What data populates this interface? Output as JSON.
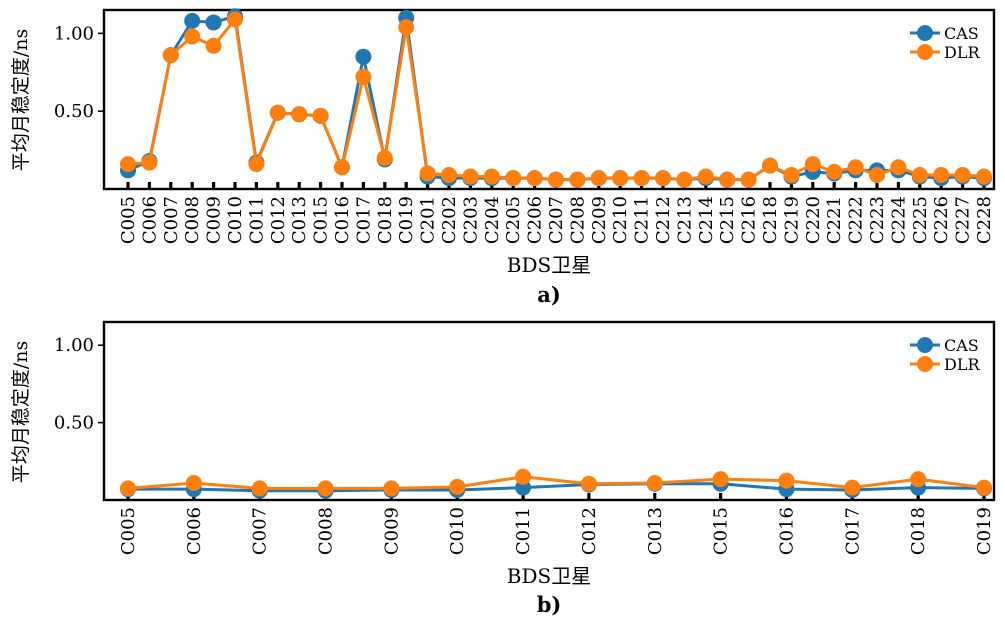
{
  "chart_data": [
    {
      "type": "line",
      "panel_label": "a)",
      "xlabel": "BDS卫星",
      "ylabel": "平均月稳定度/ns",
      "ylim": [
        0.0,
        1.15
      ],
      "yticks": [
        0.5,
        1.0
      ],
      "ytick_labels": [
        "0.50",
        "1.00"
      ],
      "legend_position": "top-right",
      "categories": [
        "C005",
        "C006",
        "C007",
        "C008",
        "C009",
        "C010",
        "C011",
        "C012",
        "C013",
        "C015",
        "C016",
        "C017",
        "C018",
        "C019",
        "C201",
        "C202",
        "C203",
        "C204",
        "C205",
        "C206",
        "C207",
        "C208",
        "C209",
        "C210",
        "C211",
        "C212",
        "C213",
        "C214",
        "C215",
        "C216",
        "C218",
        "C219",
        "C220",
        "C221",
        "C222",
        "C223",
        "C224",
        "C225",
        "C226",
        "C227",
        "C228"
      ],
      "series": [
        {
          "name": "CAS",
          "color": "#1f77b4",
          "values": [
            0.12,
            0.18,
            0.86,
            1.08,
            1.07,
            1.11,
            0.17,
            0.49,
            0.48,
            0.47,
            0.14,
            0.85,
            0.19,
            1.1,
            0.08,
            0.07,
            0.07,
            0.07,
            0.07,
            0.07,
            0.06,
            0.06,
            0.07,
            0.07,
            0.07,
            0.07,
            0.06,
            0.07,
            0.06,
            0.06,
            0.15,
            0.08,
            0.11,
            0.1,
            0.12,
            0.12,
            0.12,
            0.08,
            0.07,
            0.08,
            0.07
          ]
        },
        {
          "name": "DLR",
          "color": "#ff7f0e",
          "values": [
            0.16,
            0.17,
            0.86,
            0.98,
            0.92,
            1.09,
            0.16,
            0.49,
            0.48,
            0.47,
            0.14,
            0.72,
            0.2,
            1.04,
            0.1,
            0.09,
            0.08,
            0.08,
            0.07,
            0.07,
            0.06,
            0.06,
            0.07,
            0.07,
            0.07,
            0.07,
            0.06,
            0.08,
            0.06,
            0.06,
            0.15,
            0.09,
            0.16,
            0.11,
            0.14,
            0.09,
            0.14,
            0.09,
            0.09,
            0.09,
            0.08
          ]
        }
      ]
    },
    {
      "type": "line",
      "panel_label": "b)",
      "xlabel": "BDS卫星",
      "ylabel": "平均月稳定度/ns",
      "ylim": [
        0.0,
        1.15
      ],
      "yticks": [
        0.5,
        1.0
      ],
      "ytick_labels": [
        "0.50",
        "1.00"
      ],
      "legend_position": "top-right",
      "categories": [
        "C005",
        "C006",
        "C007",
        "C008",
        "C009",
        "C010",
        "C011",
        "C012",
        "C013",
        "C015",
        "C016",
        "C017",
        "C018",
        "C019"
      ],
      "series": [
        {
          "name": "CAS",
          "color": "#1f77b4",
          "values": [
            0.07,
            0.07,
            0.06,
            0.06,
            0.065,
            0.065,
            0.08,
            0.1,
            0.105,
            0.105,
            0.07,
            0.065,
            0.08,
            0.075
          ]
        },
        {
          "name": "DLR",
          "color": "#ff7f0e",
          "values": [
            0.075,
            0.11,
            0.075,
            0.075,
            0.075,
            0.085,
            0.15,
            0.105,
            0.11,
            0.135,
            0.125,
            0.08,
            0.135,
            0.08
          ]
        }
      ]
    }
  ]
}
